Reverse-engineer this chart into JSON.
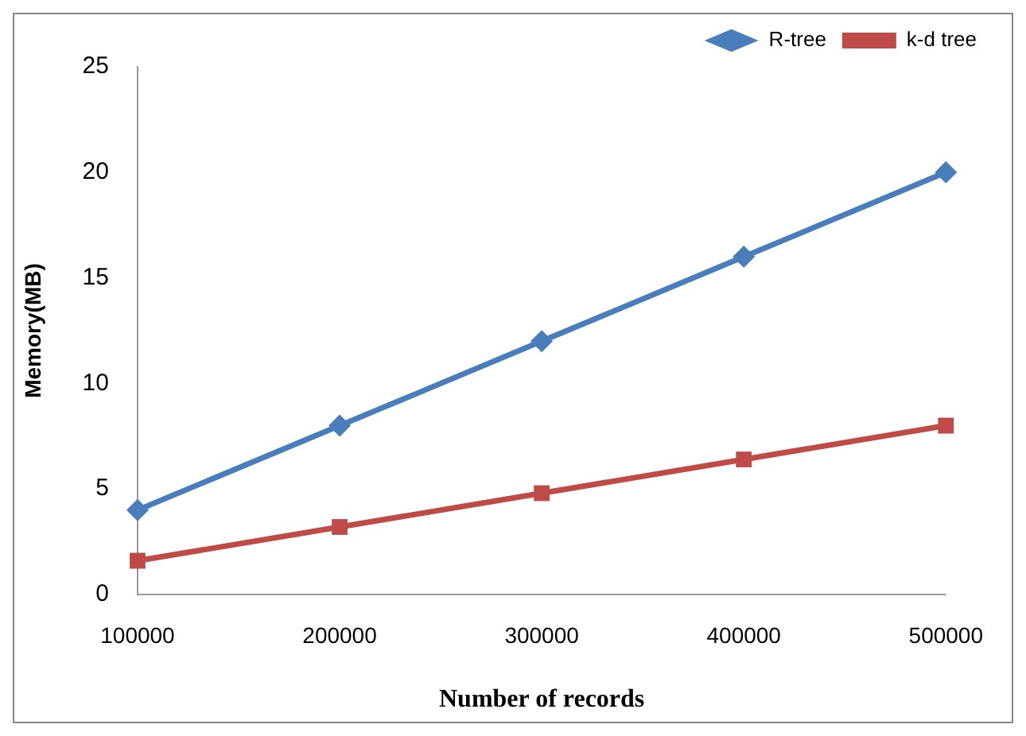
{
  "chart_data": {
    "type": "line",
    "xlabel": "Number of records",
    "ylabel": "Memory(MB)",
    "categories": [
      "100000",
      "200000",
      "300000",
      "400000",
      "500000"
    ],
    "series": [
      {
        "name": "R-tree",
        "color": "#4a7ebb",
        "marker": "diamond",
        "values": [
          4,
          8,
          12,
          16,
          20
        ]
      },
      {
        "name": "k-d tree",
        "color": "#be4b48",
        "marker": "square",
        "values": [
          1.6,
          3.2,
          4.8,
          6.4,
          8
        ]
      }
    ],
    "ylim": [
      0,
      25
    ],
    "yticks": [
      0,
      5,
      10,
      15,
      20,
      25
    ],
    "grid": false,
    "legend": "top right"
  }
}
